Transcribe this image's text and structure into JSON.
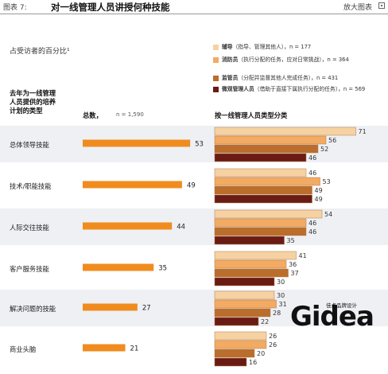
{
  "header": {
    "figure_label": "图表 7:",
    "title": "对一线管理人员讲授何种技能",
    "zoom_link": "放大图表"
  },
  "subtitle": "占受访者的百分比¹",
  "left_header": [
    "去年为一线管理",
    "人员提供的培养",
    "计划的类型"
  ],
  "total_header": {
    "label": "总数，",
    "n": "n = 1,590"
  },
  "right_header": "按一线管理人员类型分类",
  "legend": [
    {
      "bold": "辅导",
      "text": "（指导、管理其他人），n = 177",
      "color": "#f6d2a3"
    },
    {
      "bold": "消防员",
      "text": "（执行分配的任务，应对日常挑战），n = 364",
      "color": "#f3aa62"
    },
    {
      "bold": "监管员",
      "text": "（分配并监督其他人完成任务），n = 431",
      "color": "#bb6d2b"
    },
    {
      "bold": "微观管理人员",
      "text": "（借助于直接下属执行分配的任务），n = 569",
      "color": "#6a1b13"
    }
  ],
  "chart_data": {
    "type": "bar",
    "categories": [
      "总体领导技能",
      "技术/职能技能",
      "人际交往技能",
      "客户服务技能",
      "解决问题的技能",
      "商业头脑"
    ],
    "total": {
      "n": "n = 1,590",
      "values": [
        53,
        49,
        44,
        35,
        27,
        21
      ],
      "color": "#f08c1e"
    },
    "series": [
      {
        "name": "辅导",
        "values": [
          71,
          46,
          54,
          41,
          30,
          26
        ],
        "color": "#f6d2a3"
      },
      {
        "name": "消防员",
        "values": [
          56,
          53,
          46,
          36,
          31,
          26
        ],
        "color": "#f3aa62"
      },
      {
        "name": "监管员",
        "values": [
          52,
          49,
          46,
          37,
          28,
          20
        ],
        "color": "#bb6d2b"
      },
      {
        "name": "微观管理人员",
        "values": [
          46,
          49,
          35,
          30,
          22,
          16
        ],
        "color": "#6a1b13"
      }
    ]
  },
  "logo": {
    "main": "Gidea",
    "sub": "佳点品牌设计"
  }
}
